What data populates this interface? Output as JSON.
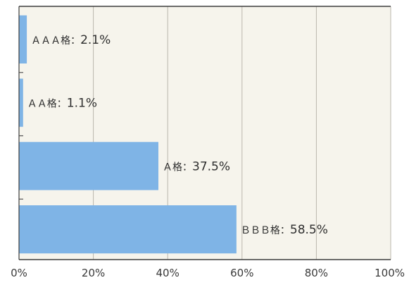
{
  "chart_data": {
    "type": "bar",
    "orientation": "horizontal",
    "categories": [
      "AAA格",
      "AA格",
      "A格",
      "BBB格"
    ],
    "category_display": [
      "ＡＡＡ格",
      "ＡＡ格",
      "Ａ格",
      "ＢＢＢ格"
    ],
    "values": [
      2.1,
      1.1,
      37.5,
      58.5
    ],
    "value_labels": [
      "2.1%",
      "1.1%",
      "37.5%",
      "58.5%"
    ],
    "label_separator": "：",
    "title": "",
    "xlabel": "",
    "ylabel": "",
    "xlim": [
      0,
      100
    ],
    "x_ticks": [
      0,
      20,
      40,
      60,
      80,
      100
    ],
    "x_tick_labels": [
      "0%",
      "20%",
      "40%",
      "60%",
      "80%",
      "100%"
    ],
    "grid": true,
    "legend": "none",
    "colors": {
      "bar": "#7fb4e6",
      "plot_background": "#f6f4ec",
      "grid": "#b9b6ad",
      "axis": "#3c3c3c"
    }
  }
}
